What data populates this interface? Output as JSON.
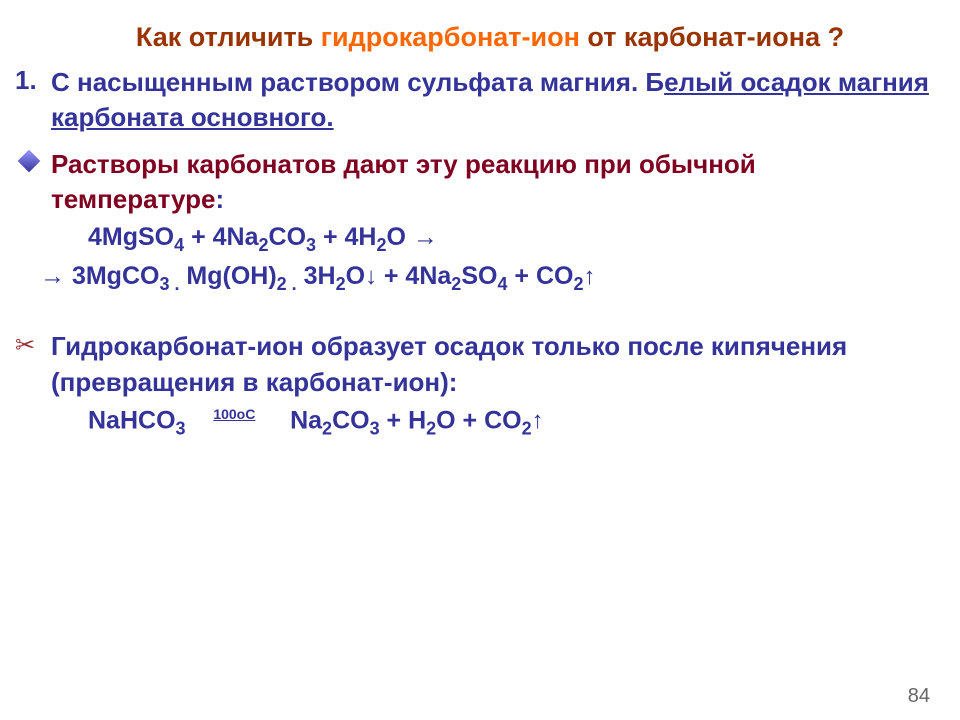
{
  "title": {
    "part1": "Как отличить ",
    "accent": "гидрокарбонат-ион",
    "part2": " от карбонат-иона ",
    "qmark": "?"
  },
  "item1": {
    "number": "1.",
    "line1a": "С насыщенным раствором сульфата магния. Б",
    "line1b": "елый осадок магния карбоната основного."
  },
  "item2": {
    "text1": "Растворы карбонатов дают эту реакцию при обычной температуре",
    "colon": ":",
    "formula1_a": "4MgSO",
    "formula1_b": " + 4Na",
    "formula1_c": "CO",
    "formula1_d": " + 4H",
    "formula1_e": "O  ",
    "formula2_a": " 3MgCO",
    "formula2_b": " Mg(OH)",
    "formula2_c": " 3H",
    "formula2_d": "O",
    "formula2_e": "  + 4Na",
    "formula2_f": "SO",
    "formula2_g": " +  CO"
  },
  "item3": {
    "text": "Гидрокарбонат-ион образует осадок только после кипячения (превращения в карбонат-ион):",
    "formula_a": "NaHCO",
    "cond": "100oC",
    "formula_b": "     Na",
    "formula_c": "CO",
    "formula_d": " + H",
    "formula_e": "O  + CO"
  },
  "pagenum": "84"
}
